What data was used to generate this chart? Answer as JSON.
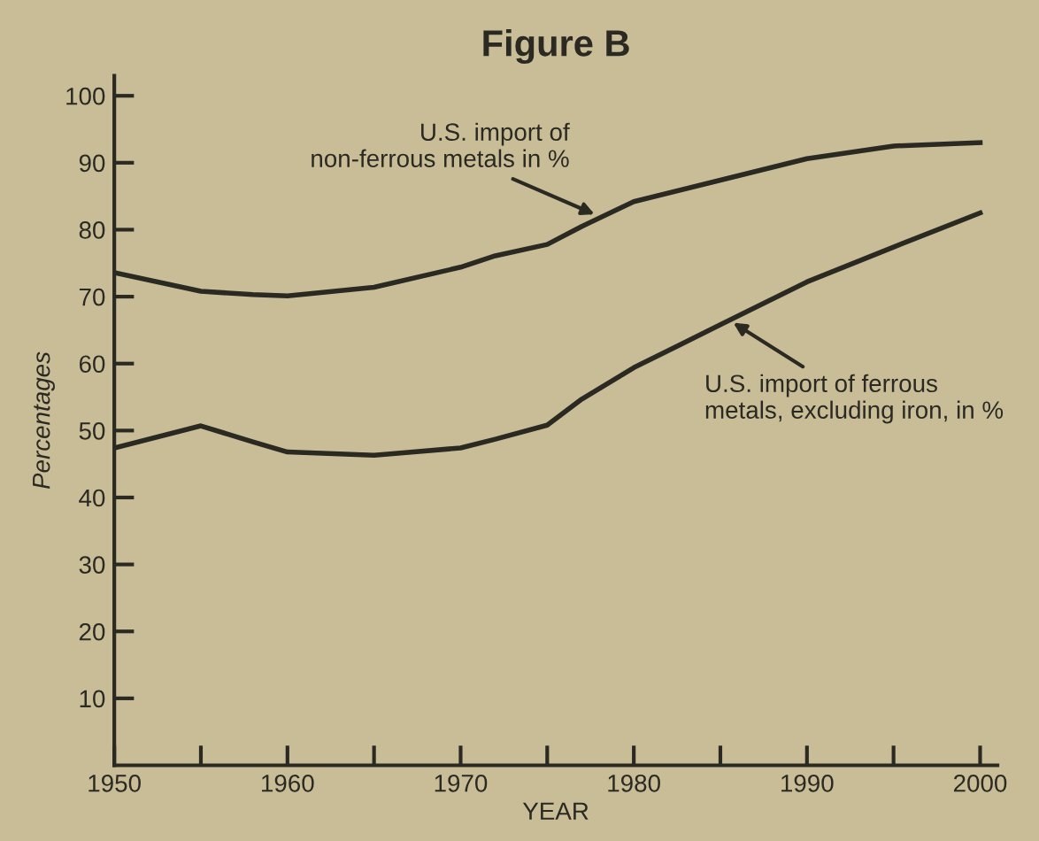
{
  "chart_data": {
    "type": "line",
    "title": "Figure B",
    "xlabel": "YEAR",
    "ylabel": "Percentages",
    "x": [
      1950,
      1955,
      1958,
      1960,
      1965,
      1970,
      1972,
      1975,
      1977,
      1980,
      1985,
      1990,
      1995,
      2000
    ],
    "series": [
      {
        "color": "#2b2a22",
        "values": [
          73.6,
          70.8,
          70.3,
          70.1,
          71.4,
          74.4,
          76.1,
          77.8,
          80.5,
          84.2,
          87.4,
          90.6,
          92.5,
          93.0
        ]
      },
      {
        "color": "#2b2a22",
        "values": [
          47.4,
          50.7,
          48.3,
          46.8,
          46.3,
          47.4,
          48.7,
          50.8,
          54.7,
          59.4,
          65.8,
          72.2,
          77.4,
          82.5
        ]
      }
    ],
    "annotations": [
      {
        "text": "U.S. import of\nnon-ferrous metals in %",
        "x": 1978,
        "y": 82
      },
      {
        "text": "U.S. import of ferrous\nmetals, excluding iron, in %",
        "x": 1985.5,
        "y": 66.5
      }
    ],
    "xlim": [
      1950,
      2001
    ],
    "ylim": [
      0,
      103
    ],
    "xticks": [
      1950,
      {
        "value": 1955,
        "label": null
      },
      1960,
      {
        "value": 1965,
        "label": null
      },
      1970,
      {
        "value": 1975,
        "label": null
      },
      1980,
      {
        "value": 1985,
        "label": null
      },
      1990,
      {
        "value": 1995,
        "label": null
      },
      2000
    ],
    "yticks": [
      10,
      20,
      30,
      40,
      50,
      60,
      70,
      80,
      90,
      100
    ],
    "marker": "none",
    "line_style": "solid"
  }
}
